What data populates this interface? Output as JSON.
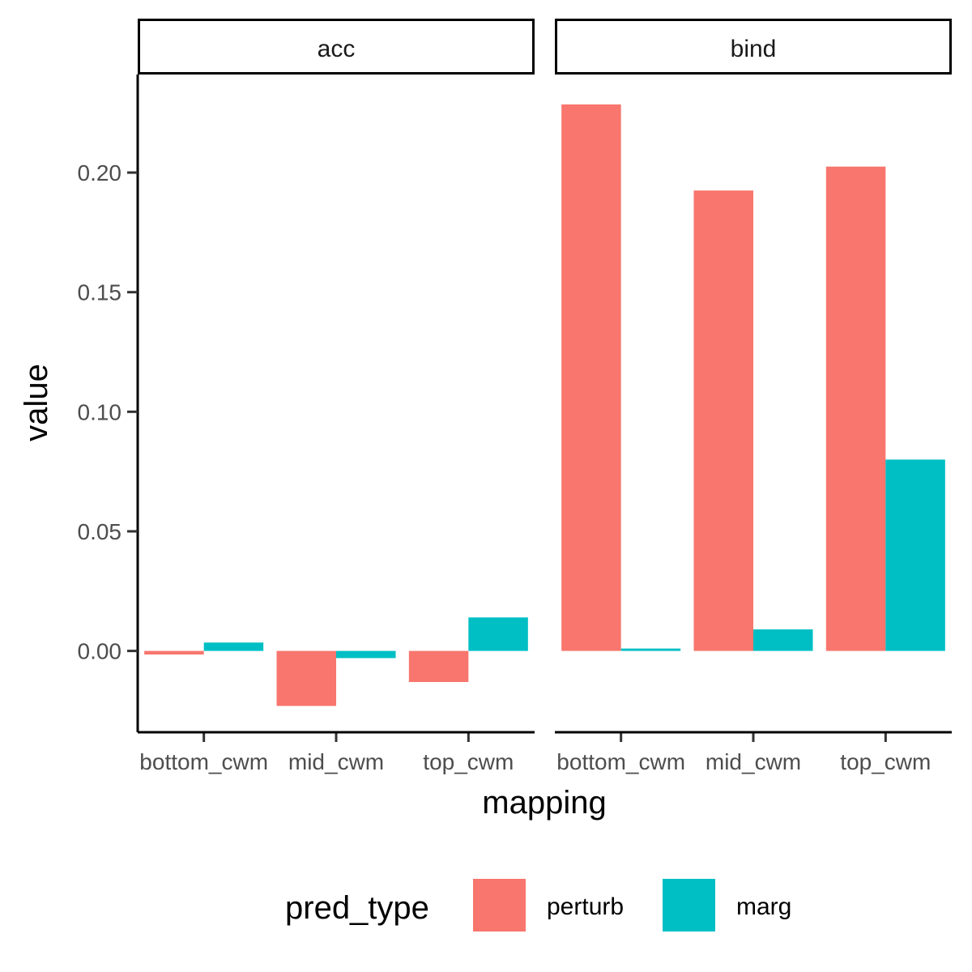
{
  "chart_data": {
    "type": "bar",
    "facets": [
      {
        "strip": "acc",
        "categories": [
          "bottom_cwm",
          "mid_cwm",
          "top_cwm"
        ],
        "series": [
          {
            "name": "perturb",
            "values": [
              -0.0015,
              -0.023,
              -0.013
            ]
          },
          {
            "name": "marg",
            "values": [
              0.0035,
              -0.003,
              0.014
            ]
          }
        ]
      },
      {
        "strip": "bind",
        "categories": [
          "bottom_cwm",
          "mid_cwm",
          "top_cwm"
        ],
        "series": [
          {
            "name": "perturb",
            "values": [
              0.2285,
              0.1925,
              0.2025
            ]
          },
          {
            "name": "marg",
            "values": [
              0.001,
              0.009,
              0.08
            ]
          }
        ]
      }
    ],
    "xlabel": "mapping",
    "ylabel": "value",
    "ylim": [
      -0.034,
      0.241
    ],
    "yticks": [
      "0.00",
      "0.05",
      "0.10",
      "0.15",
      "0.20"
    ],
    "grid": false,
    "legend": {
      "title": "pred_type",
      "placement": "bottom",
      "items": [
        {
          "name": "perturb",
          "color": "#F8766D"
        },
        {
          "name": "marg",
          "color": "#00BFC4"
        }
      ]
    }
  }
}
